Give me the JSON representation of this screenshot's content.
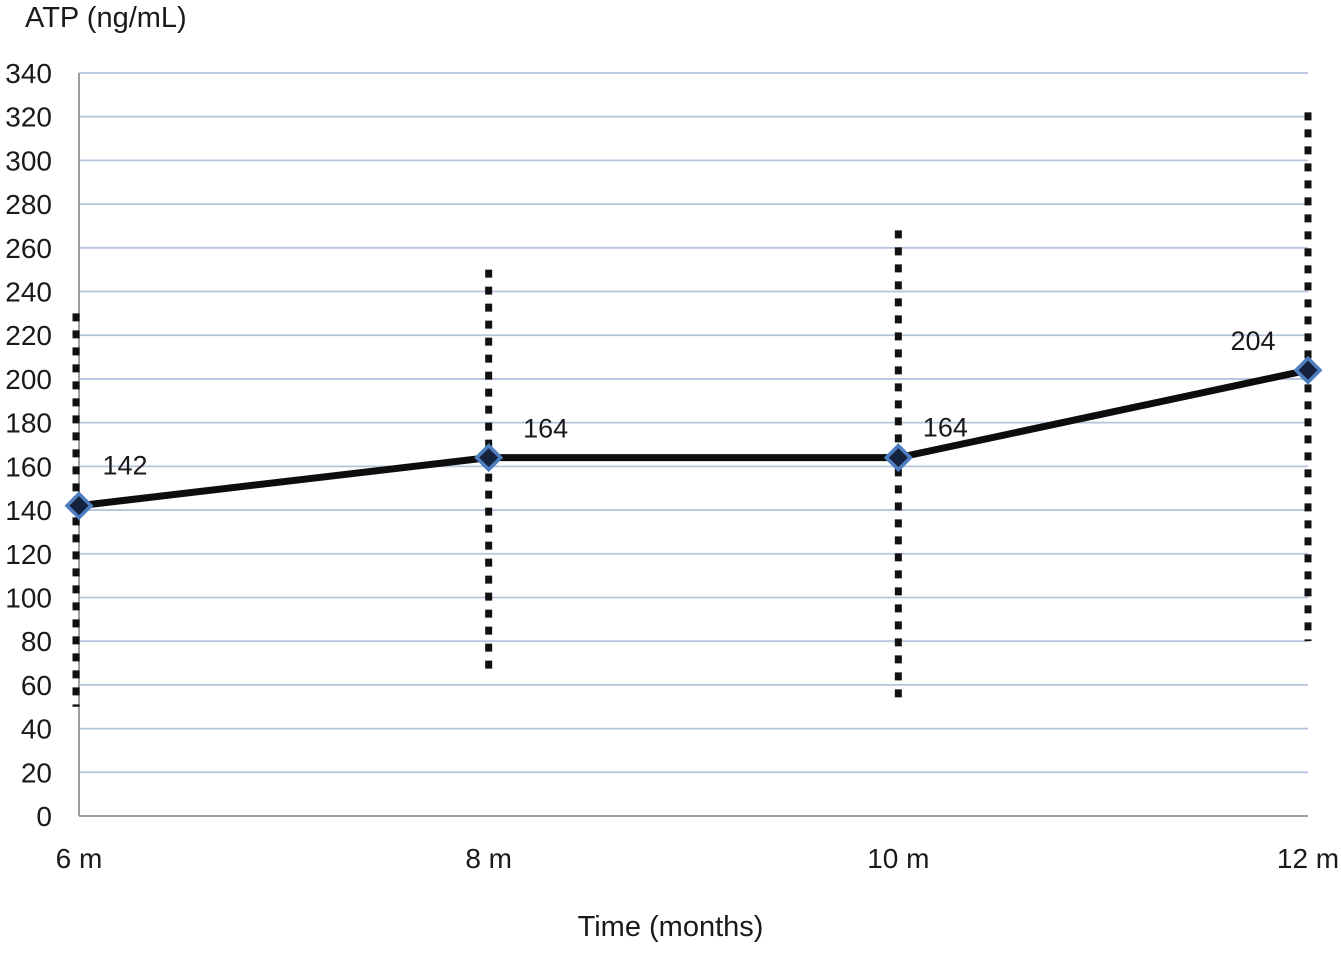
{
  "chart_data": {
    "type": "line",
    "title": "ATP (ng/mL)",
    "xlabel": "Time (months)",
    "ylabel": "ATP (ng/mL)",
    "categories": [
      "6 m",
      "8 m",
      "10 m",
      "12 m"
    ],
    "series": [
      {
        "name": "ATP",
        "values": [
          142,
          164,
          164,
          204
        ],
        "point_labels": [
          "142",
          "164",
          "164",
          "204"
        ],
        "error_bars": [
          {
            "low": 50,
            "high": 230
          },
          {
            "low": 64,
            "high": 250
          },
          {
            "low": 54,
            "high": 268
          },
          {
            "low": 80,
            "high": 322
          }
        ]
      }
    ],
    "ylim": [
      0,
      340
    ],
    "ytick_step": 20,
    "ytick_labels": [
      "0",
      "20",
      "40",
      "60",
      "80",
      "100",
      "120",
      "140",
      "160",
      "180",
      "200",
      "220",
      "240",
      "260",
      "280",
      "300",
      "320",
      "340"
    ],
    "grid": "horizontal",
    "legend": "none",
    "colors": {
      "series_line": "#0d0d0d",
      "marker_fill": "#16233f",
      "marker_stroke": "#4d7ebf",
      "error_bar": "#111111",
      "gridline": "#b5c3dd",
      "axis_line": "#9e9e9e",
      "text": "#1a1a1a"
    }
  }
}
